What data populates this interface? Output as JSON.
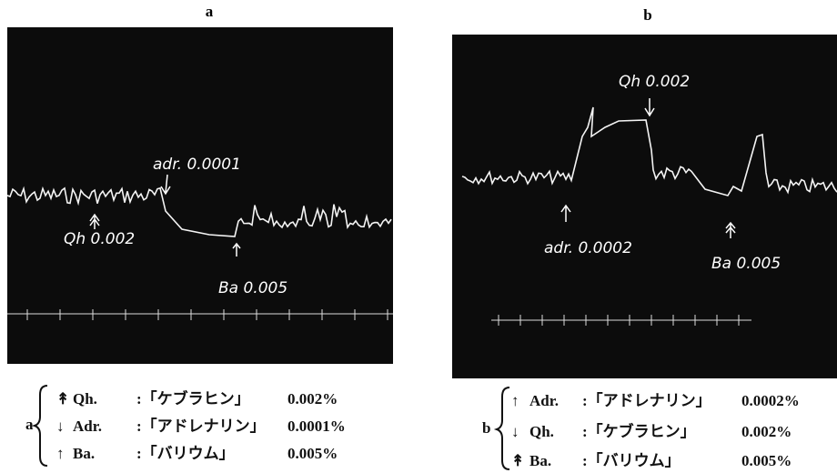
{
  "panels": [
    {
      "label": "a",
      "annotations": [
        "adr. 0.0001",
        "Qh 0.002",
        "Ba 0.005"
      ],
      "legend": {
        "label": "a",
        "rows": [
          {
            "symbol": "↟",
            "name": "Qh.",
            "drug": ":「ケブラヒン」",
            "dose": "0.002%"
          },
          {
            "symbol": "↓",
            "name": "Adr.",
            "drug": ":「アドレナリン」",
            "dose": "0.0001%"
          },
          {
            "symbol": "↑",
            "name": "Ba.",
            "drug": ":「バリウム」",
            "dose": "0.005%"
          }
        ]
      }
    },
    {
      "label": "b",
      "annotations": [
        "Qh 0.002",
        "adr. 0.0002",
        "Ba 0.005"
      ],
      "legend": {
        "label": "b",
        "rows": [
          {
            "symbol": "↑",
            "name": "Adr.",
            "drug": ":「アドレナリン」",
            "dose": "0.0002%"
          },
          {
            "symbol": "↓",
            "name": "Qh.",
            "drug": ":「ケブラヒン」",
            "dose": "0.002%"
          },
          {
            "symbol": "↟",
            "name": "Ba.",
            "drug": ":「バリウム」",
            "dose": "0.005%"
          }
        ]
      }
    }
  ]
}
